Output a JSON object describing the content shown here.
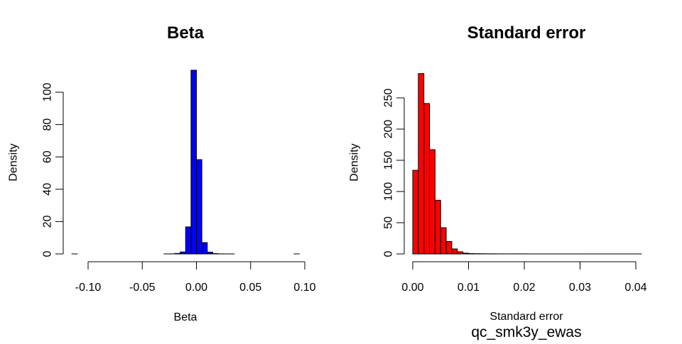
{
  "footer_label": "qc_smk3y_ewas",
  "chart_data": [
    {
      "type": "bar",
      "title": "Beta",
      "xlabel": "Beta",
      "ylabel": "Density",
      "color": "#0000ff",
      "bin_width": 0.005,
      "bins_start": [
        -0.115,
        -0.11,
        -0.105,
        -0.1,
        -0.095,
        -0.09,
        -0.085,
        -0.08,
        -0.075,
        -0.07,
        -0.065,
        -0.06,
        -0.055,
        -0.05,
        -0.045,
        -0.04,
        -0.035,
        -0.03,
        -0.025,
        -0.02,
        -0.015,
        -0.01,
        -0.005,
        0.0,
        0.005,
        0.01,
        0.015,
        0.02,
        0.025,
        0.03,
        0.035,
        0.04,
        0.045,
        0.05,
        0.055,
        0.06,
        0.065,
        0.07,
        0.075,
        0.08,
        0.085,
        0.09
      ],
      "values": [
        0.01,
        0,
        0,
        0,
        0,
        0,
        0,
        0,
        0,
        0,
        0,
        0,
        0,
        0,
        0,
        0,
        0,
        0.01,
        0.05,
        0.3,
        1.2,
        16.7,
        113.6,
        58.3,
        7.0,
        1.1,
        0.2,
        0.05,
        0.02,
        0.01,
        0,
        0,
        0,
        0,
        0,
        0,
        0,
        0,
        0,
        0,
        0,
        0.01
      ],
      "xlim": [
        -0.115,
        0.095
      ],
      "ylim": [
        0,
        114
      ],
      "xticks": [
        -0.1,
        -0.05,
        0.0,
        0.05,
        0.1
      ],
      "xtick_labels": [
        "-0.10",
        "-0.05",
        "0.00",
        "0.05",
        "0.10"
      ],
      "yticks": [
        0,
        20,
        40,
        60,
        80,
        100
      ],
      "ytick_labels": [
        "0",
        "20",
        "40",
        "60",
        "80",
        "100"
      ]
    },
    {
      "type": "bar",
      "title": "Standard error",
      "xlabel": "Standard error",
      "ylabel": "Density",
      "color": "#ff0000",
      "bin_width": 0.001,
      "bins_start": [
        0.0,
        0.001,
        0.002,
        0.003,
        0.004,
        0.005,
        0.006,
        0.007,
        0.008,
        0.009,
        0.01,
        0.011,
        0.012,
        0.013,
        0.014,
        0.015,
        0.016,
        0.017,
        0.018,
        0.019,
        0.02,
        0.021,
        0.022,
        0.023,
        0.024,
        0.025,
        0.026,
        0.027,
        0.028,
        0.029,
        0.03,
        0.031,
        0.032,
        0.033,
        0.034,
        0.035,
        0.036,
        0.037,
        0.038,
        0.039,
        0.04
      ],
      "values": [
        134,
        289,
        241,
        167,
        86,
        42,
        20,
        8,
        3.4,
        1.2,
        0.6,
        0.4,
        0.3,
        0.2,
        0.2,
        0.1,
        0.1,
        0.1,
        0.1,
        0.1,
        0.05,
        0.05,
        0.05,
        0.05,
        0.05,
        0.05,
        0.05,
        0.05,
        0.05,
        0.05,
        0.02,
        0.02,
        0.02,
        0.02,
        0.02,
        0.02,
        0.02,
        0.02,
        0.02,
        0.02,
        0.02
      ],
      "xlim": [
        0,
        0.041
      ],
      "ylim": [
        0,
        289
      ],
      "xticks": [
        0.0,
        0.01,
        0.02,
        0.03,
        0.04
      ],
      "xtick_labels": [
        "0.00",
        "0.01",
        "0.02",
        "0.03",
        "0.04"
      ],
      "yticks": [
        0,
        50,
        100,
        150,
        200,
        250
      ],
      "ytick_labels": [
        "0",
        "50",
        "100",
        "150",
        "200",
        "250"
      ]
    }
  ]
}
